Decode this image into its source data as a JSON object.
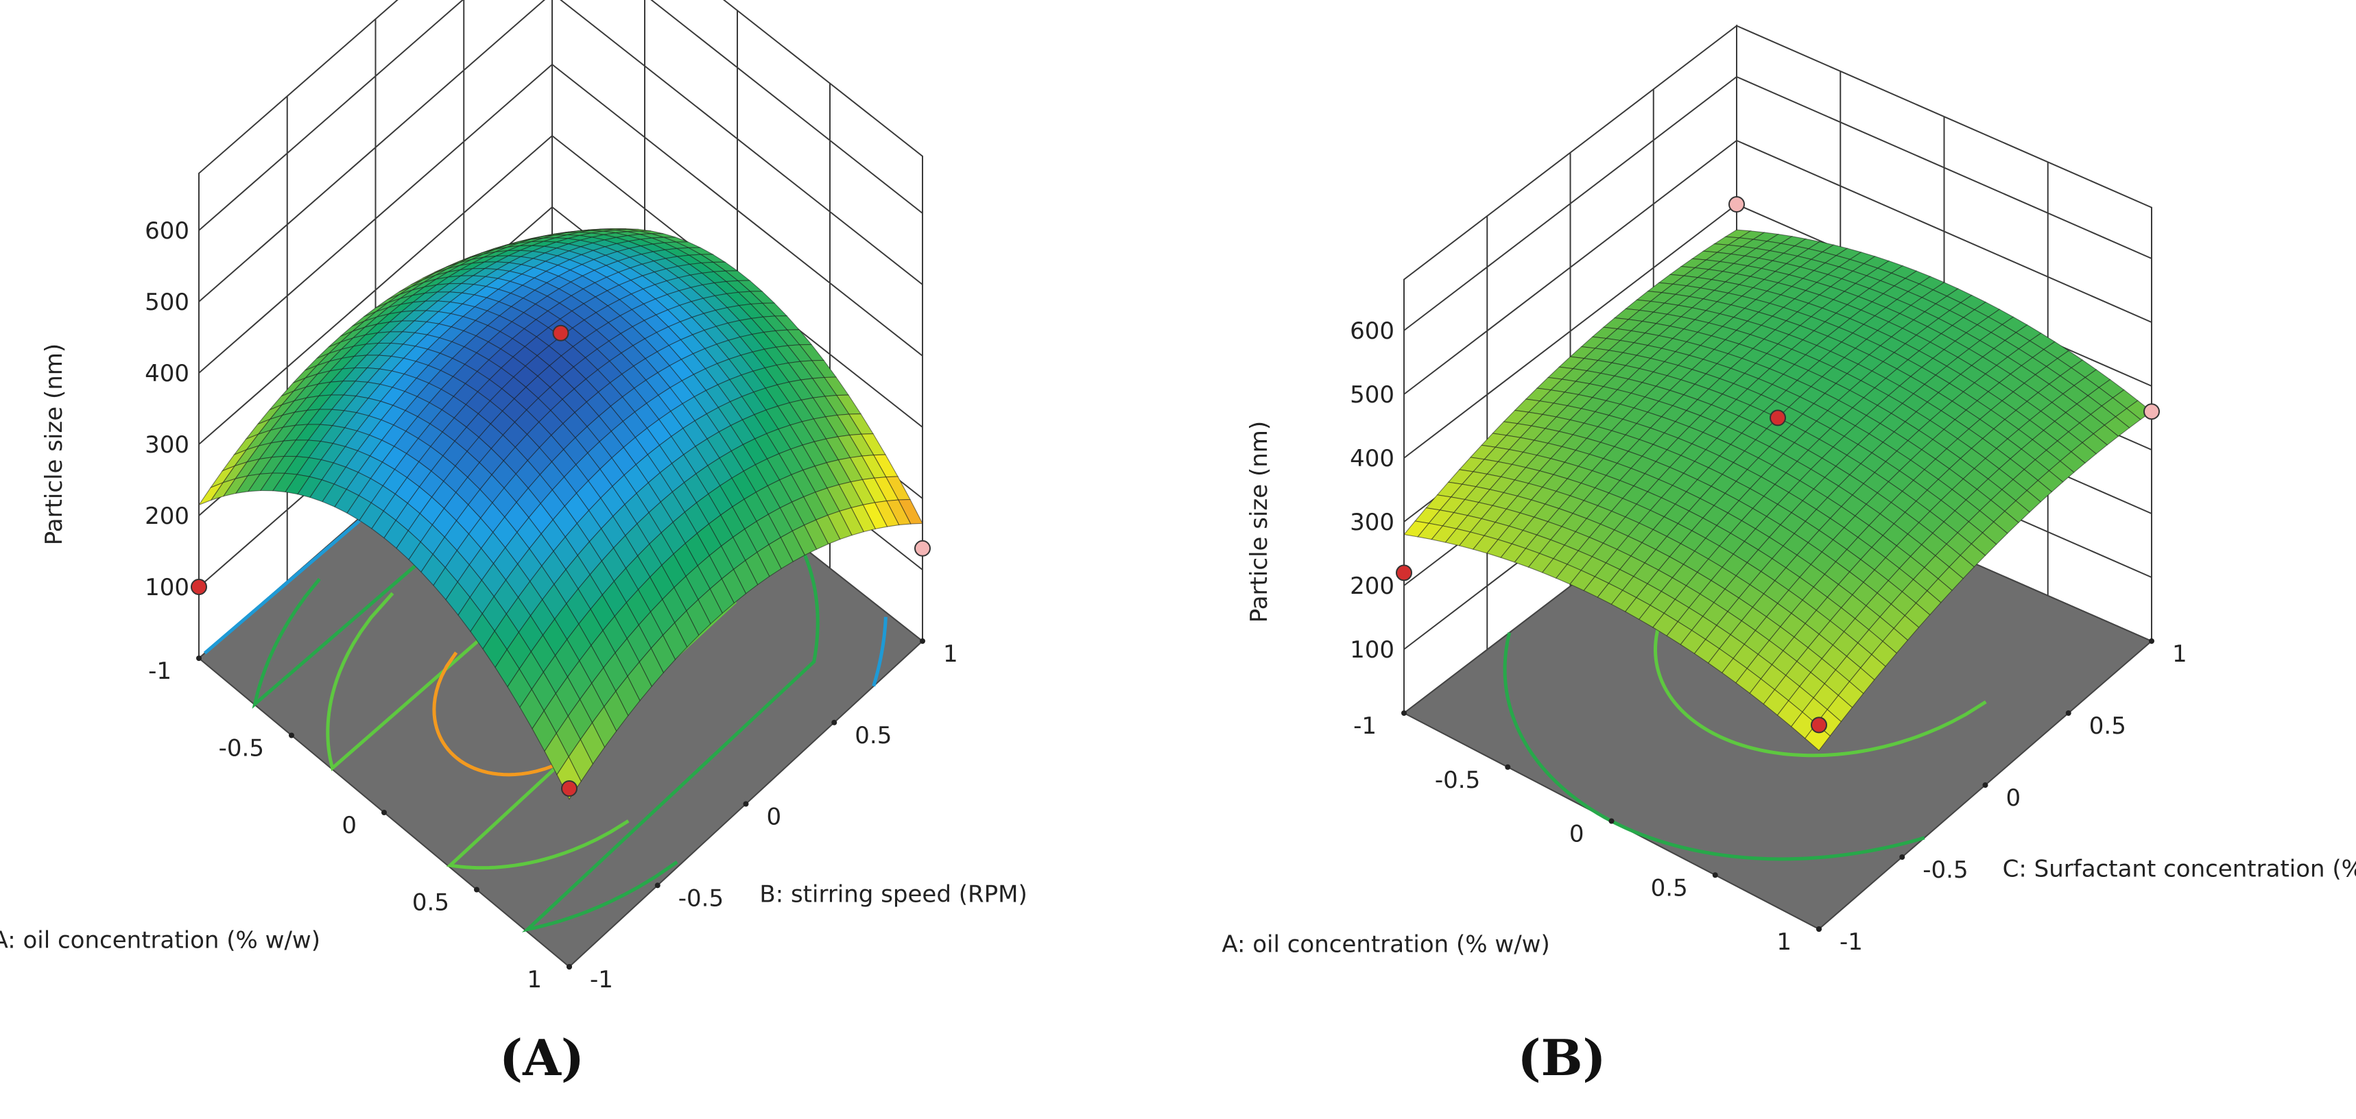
{
  "chart_data": [
    {
      "type": "surface3d",
      "panel_label": "(A)",
      "z_label": "Particle size (nm)",
      "x_label": "A: oil concentration (% w/w)",
      "y_label": "B: stirring speed (RPM)",
      "x_ticks": [
        "-1",
        "-0.5",
        "0",
        "0.5",
        "1"
      ],
      "y_ticks": [
        "-1",
        "-0.5",
        "0",
        "0.5",
        "1"
      ],
      "z_ticks": [
        "100",
        "200",
        "300",
        "400",
        "500",
        "600"
      ],
      "xlim": [
        -1,
        1
      ],
      "ylim": [
        -1,
        1
      ],
      "zlim": [
        100,
        600
      ],
      "model": {
        "c": 445,
        "a": 10,
        "b": -35,
        "aa": -160,
        "bb": -95,
        "ab": 0
      },
      "contour_levels": [
        {
          "level": 220,
          "color": "#1e9ad6"
        },
        {
          "level": 300,
          "color": "#27a84a"
        },
        {
          "level": 370,
          "color": "#5ec840"
        },
        {
          "level": 430,
          "color": "#f39a1f"
        }
      ],
      "design_points": [
        {
          "x": 0,
          "y": 0,
          "z": 450,
          "color": "#d32f2f"
        },
        {
          "x": -1,
          "y": -1,
          "z": 100,
          "color": "#d32f2f"
        },
        {
          "x": 1,
          "y": 1,
          "z": 130,
          "color": "#f4b6b6"
        },
        {
          "x": 1,
          "y": -1,
          "z": 250,
          "color": "#d32f2f"
        }
      ],
      "color_scale": [
        "#2c2a8c",
        "#1f9ee8",
        "#13a86a",
        "#4fb84a",
        "#f2ee1e",
        "#f58d2a",
        "#e2332b"
      ]
    },
    {
      "type": "surface3d",
      "panel_label": "(B)",
      "z_label": "Particle size (nm)",
      "x_label": "A: oil concentration (% w/w)",
      "y_label": "C: Surfactant concentration (% w/w)",
      "x_ticks": [
        "-1",
        "-0.5",
        "0",
        "0.5",
        "1"
      ],
      "y_ticks": [
        "-1",
        "-0.5",
        "0",
        "0.5",
        "1"
      ],
      "z_ticks": [
        "100",
        "200",
        "300",
        "400",
        "500",
        "600"
      ],
      "xlim": [
        -1,
        1
      ],
      "ylim": [
        -1,
        1
      ],
      "zlim": [
        100,
        600
      ],
      "model": {
        "c": 420,
        "a": 0,
        "b": 40,
        "aa": -60,
        "bb": -40,
        "ab": 0
      },
      "contour_levels": [
        {
          "level": 340,
          "color": "#27a84a"
        },
        {
          "level": 400,
          "color": "#5ec840"
        }
      ],
      "design_points": [
        {
          "x": 0,
          "y": 0,
          "z": 420,
          "color": "#d32f2f"
        },
        {
          "x": -1,
          "y": -1,
          "z": 220,
          "color": "#d32f2f"
        },
        {
          "x": 1,
          "y": 1,
          "z": 360,
          "color": "#f4b6b6"
        },
        {
          "x": -1,
          "y": 1,
          "z": 400,
          "color": "#f4b6b6"
        },
        {
          "x": 1,
          "y": -1,
          "z": 320,
          "color": "#d32f2f"
        }
      ],
      "color_scale": [
        "#2c2a8c",
        "#1f9ee8",
        "#13a86a",
        "#4fb84a",
        "#f2ee1e",
        "#f58d2a",
        "#e2332b"
      ]
    }
  ]
}
